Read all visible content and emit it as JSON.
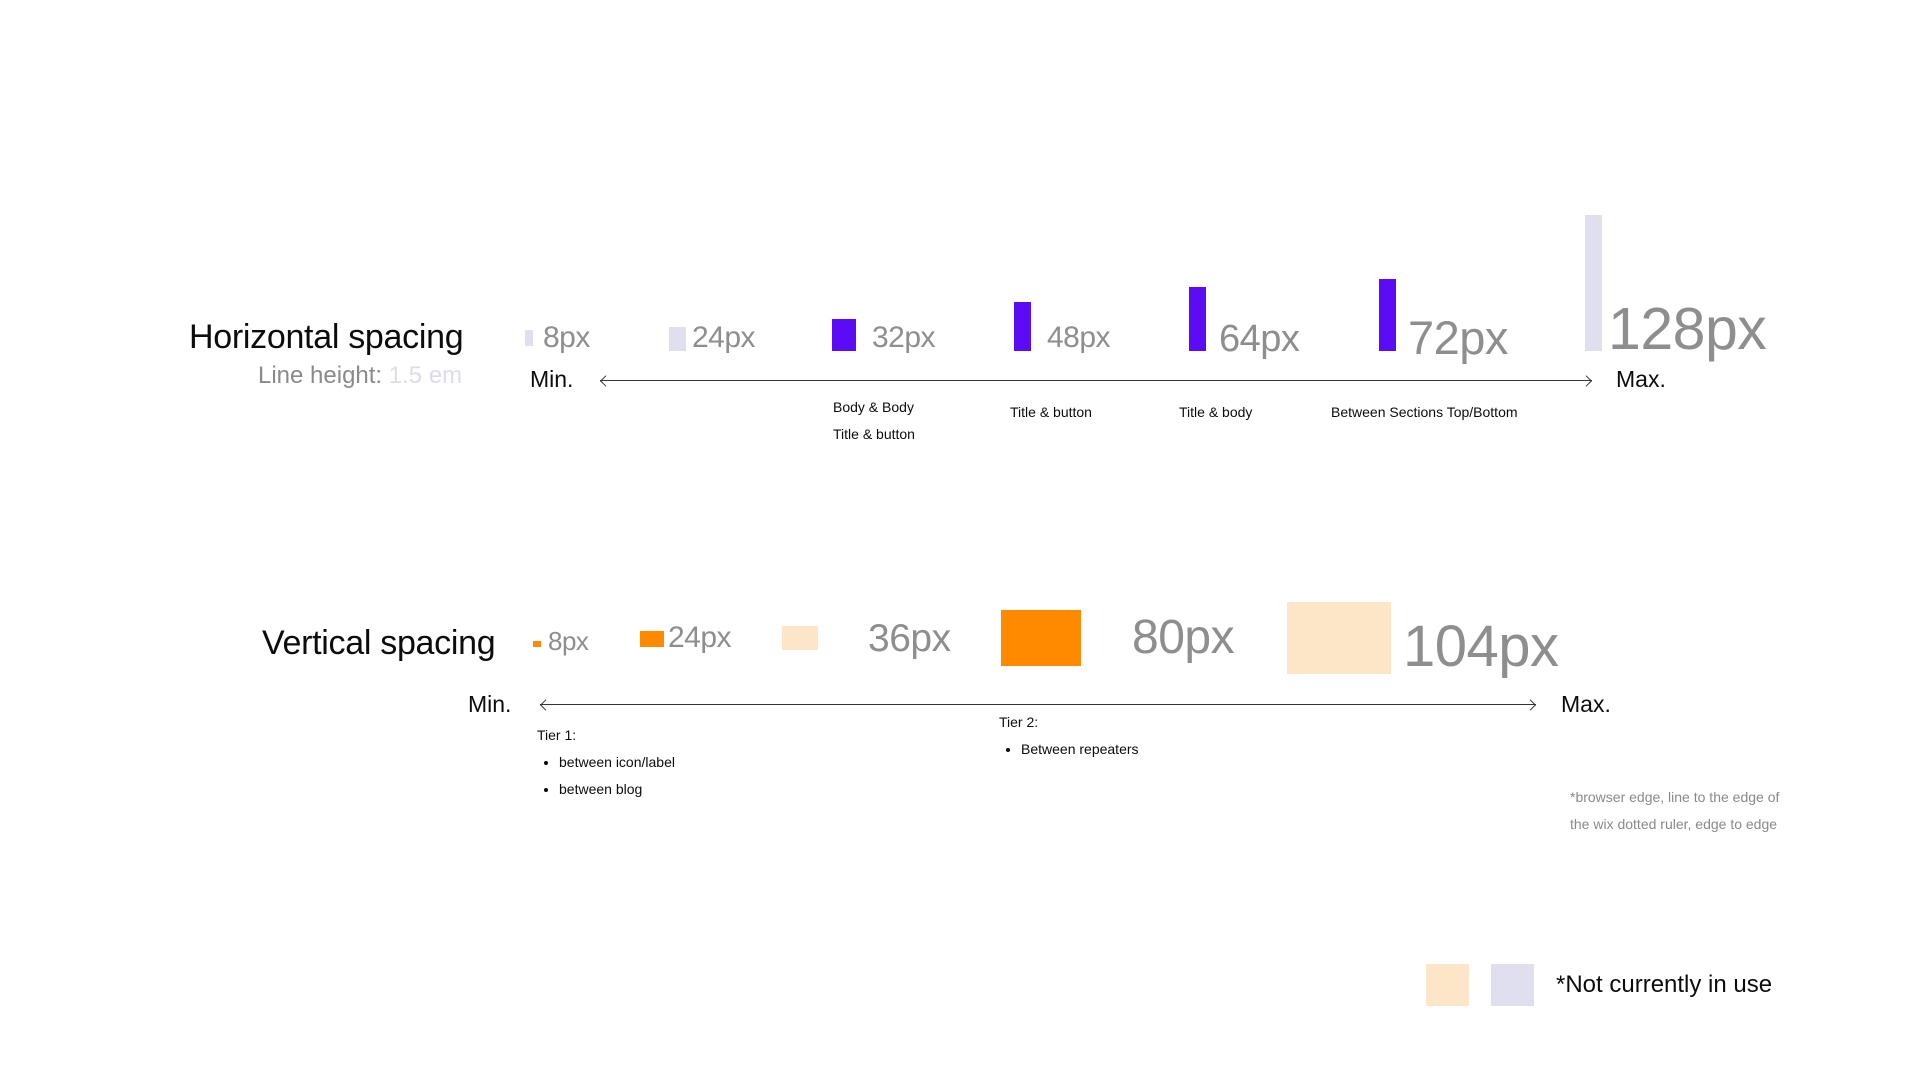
{
  "colors": {
    "purple": "#5b0cf5",
    "orange": "#ff8a00",
    "light_lavender": "#dfdfef",
    "light_peach": "#fde5c8"
  },
  "horizontal": {
    "title": "Horizontal spacing",
    "line_height_label": "Line height:",
    "line_height_value": "1.5 em",
    "min_label": "Min.",
    "max_label": "Max.",
    "steps": [
      {
        "label": "8px",
        "value": 8,
        "in_use": false
      },
      {
        "label": "24px",
        "value": 24,
        "in_use": false
      },
      {
        "label": "32px",
        "value": 32,
        "in_use": true
      },
      {
        "label": "48px",
        "value": 48,
        "in_use": true
      },
      {
        "label": "64px",
        "value": 64,
        "in_use": true
      },
      {
        "label": "72px",
        "value": 72,
        "in_use": true
      },
      {
        "label": "128px",
        "value": 128,
        "in_use": false
      }
    ],
    "notes": {
      "n32_line1": "Body & Body",
      "n32_line2": "Title & button",
      "n48": "Title & button",
      "n64": "Title & body",
      "n72": "Between Sections Top/Bottom"
    }
  },
  "vertical": {
    "title": "Vertical spacing",
    "min_label": "Min.",
    "max_label": "Max.",
    "steps": [
      {
        "label": "8px",
        "value": 8,
        "in_use": true
      },
      {
        "label": "24px",
        "value": 24,
        "in_use": true
      },
      {
        "label": "36px",
        "value": 36,
        "in_use": false
      },
      {
        "label": "80px",
        "value": 80,
        "in_use": true
      },
      {
        "label": "104px",
        "value": 104,
        "in_use": false
      }
    ],
    "tier1": {
      "title": "Tier 1:",
      "items": [
        "between icon/label",
        "between blog"
      ]
    },
    "tier2": {
      "title": "Tier 2:",
      "items": [
        "Between repeaters"
      ]
    }
  },
  "footnote": {
    "line1": "*browser edge, line to the edge of",
    "line2": "the wix dotted ruler, edge to edge"
  },
  "legend": {
    "text": "*Not currently in use"
  }
}
